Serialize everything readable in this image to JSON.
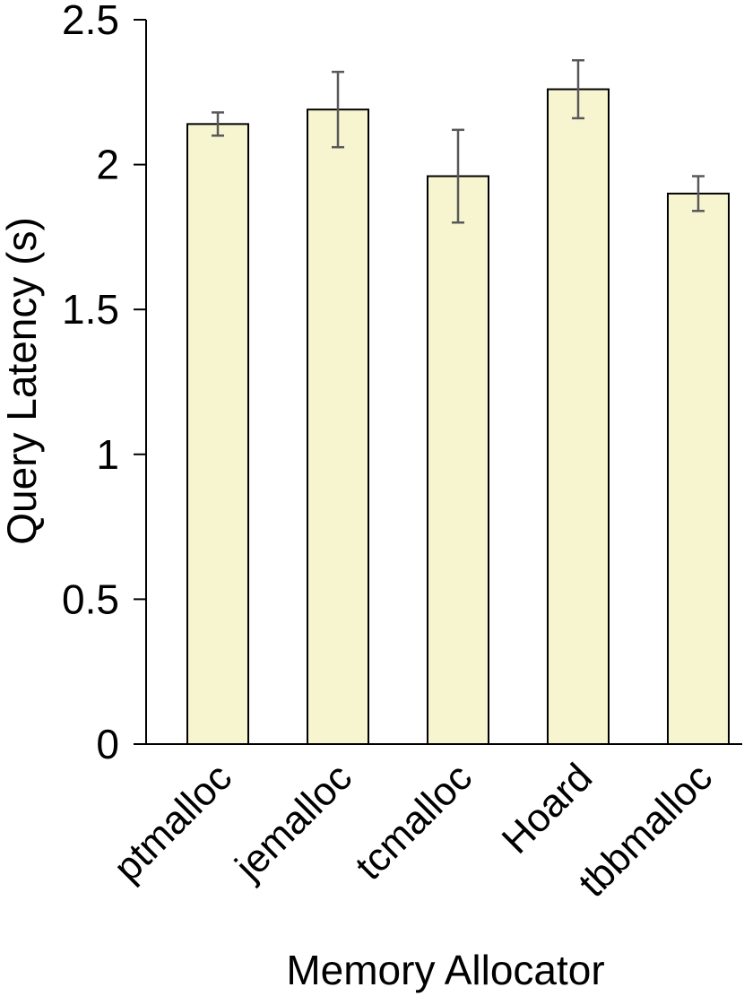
{
  "chart_data": {
    "type": "bar",
    "title": "",
    "xlabel": "Memory Allocator",
    "ylabel": "Query Latency (s)",
    "ylim": [
      0,
      2.5
    ],
    "yticks": [
      0,
      0.5,
      1,
      1.5,
      2,
      2.5
    ],
    "ytick_labels": [
      "0",
      "0.5",
      "1",
      "1.5",
      "2",
      "2.5"
    ],
    "grid": false,
    "legend": "none",
    "categories": [
      "ptmalloc",
      "jemalloc",
      "tcmalloc",
      "Hoard",
      "tbbmalloc"
    ],
    "values": [
      2.14,
      2.19,
      1.96,
      2.26,
      1.9
    ],
    "error_low": [
      2.1,
      2.06,
      1.8,
      2.16,
      1.84
    ],
    "error_high": [
      2.18,
      2.32,
      2.12,
      2.36,
      1.96
    ],
    "colors": {
      "bar_fill": "#f7f5d0",
      "bar_stroke": "#000000",
      "error_bar": "#595959",
      "axis": "#000000"
    }
  }
}
